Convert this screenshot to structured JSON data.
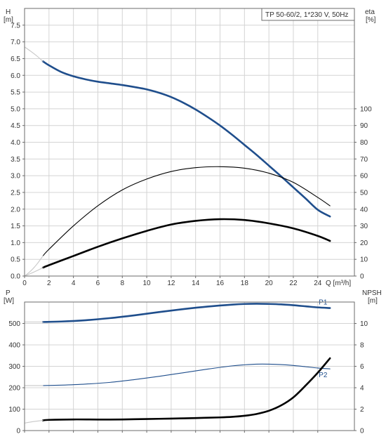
{
  "chart_data": [
    {
      "type": "line",
      "legend_text": "TP 50-60/2, 1*230 V, 50Hz",
      "xlabel": "Q [m³/h]",
      "x_ticks": [
        "0",
        "2",
        "4",
        "6",
        "8",
        "10",
        "12",
        "14",
        "16",
        "18",
        "20",
        "22",
        "24"
      ],
      "xlim": [
        0,
        27
      ],
      "ylabel_left_name": "H",
      "ylabel_left_unit": "[m]",
      "ylim_left": [
        0,
        8.0
      ],
      "y_ticks_left": [
        "0.0",
        "0.5",
        "1.0",
        "1.5",
        "2.0",
        "2.5",
        "3.0",
        "3.5",
        "4.0",
        "4.5",
        "5.0",
        "5.5",
        "6.0",
        "6.5",
        "7.0",
        "7.5"
      ],
      "ylabel_right_name": "eta",
      "ylabel_right_unit": "[%]",
      "ylim_right": [
        0,
        160
      ],
      "y_ticks_right": [
        "0",
        "10",
        "20",
        "30",
        "40",
        "50",
        "60",
        "70",
        "80",
        "90",
        "100"
      ],
      "grid": true,
      "series": [
        {
          "axis": "left",
          "color": "#1f4e8c",
          "style": "thick",
          "x": [
            1.5,
            2,
            3,
            4,
            5,
            6,
            7,
            8,
            9,
            10,
            11,
            12,
            13,
            14,
            15,
            16,
            17,
            18,
            19,
            20,
            21,
            22,
            23,
            24,
            25
          ],
          "y": [
            6.42,
            6.3,
            6.1,
            5.97,
            5.88,
            5.81,
            5.76,
            5.71,
            5.65,
            5.58,
            5.48,
            5.35,
            5.18,
            4.98,
            4.75,
            4.5,
            4.22,
            3.92,
            3.62,
            3.3,
            2.98,
            2.65,
            2.32,
            1.98,
            1.78
          ]
        },
        {
          "axis": "left",
          "color": "#c8c8c8",
          "style": "thin",
          "x": [
            0,
            0.5,
            1.0,
            1.5
          ],
          "y": [
            6.85,
            6.72,
            6.58,
            6.42
          ]
        },
        {
          "axis": "right",
          "color": "#000000",
          "style": "thin",
          "x": [
            1.5,
            2,
            4,
            6,
            8,
            10,
            12,
            14,
            16,
            18,
            20,
            22,
            24,
            25
          ],
          "y": [
            12,
            16,
            30,
            42,
            51.5,
            58,
            62.5,
            64.8,
            65.4,
            64.5,
            61.5,
            56,
            47,
            42
          ]
        },
        {
          "axis": "right",
          "color": "#000000",
          "style": "thick",
          "x": [
            1.5,
            2,
            4,
            6,
            8,
            10,
            12,
            14,
            16,
            18,
            20,
            22,
            24,
            25
          ],
          "y": [
            5,
            6.5,
            12,
            17.5,
            22.5,
            27,
            30.8,
            33,
            34,
            33.5,
            31.5,
            28.5,
            24,
            21
          ]
        },
        {
          "axis": "right",
          "color": "#c8c8c8",
          "style": "thin",
          "x": [
            0,
            0.5,
            1.0,
            1.5
          ],
          "y": [
            0,
            3,
            7,
            12
          ]
        },
        {
          "axis": "right",
          "color": "#c8c8c8",
          "style": "thin",
          "x": [
            0,
            0.5,
            1.0,
            1.5
          ],
          "y": [
            0,
            1.5,
            3.2,
            5
          ]
        }
      ]
    },
    {
      "type": "line",
      "ylabel_left_name": "P",
      "ylabel_left_unit": "[W]",
      "ylim_left": [
        0,
        600
      ],
      "y_ticks_left": [
        "0",
        "100",
        "200",
        "300",
        "400",
        "500"
      ],
      "ylabel_right_name": "NPSH",
      "ylabel_right_unit": "[m]",
      "ylim_right": [
        0,
        12
      ],
      "y_ticks_right": [
        "0",
        "2",
        "4",
        "6",
        "8",
        "10"
      ],
      "xlim": [
        0,
        27
      ],
      "grid": true,
      "series": [
        {
          "name": "P1",
          "axis": "left",
          "color": "#1f4e8c",
          "style": "thick",
          "x": [
            1.5,
            3,
            5,
            7,
            9,
            11,
            13,
            15,
            17,
            18,
            19,
            20,
            21,
            22,
            23,
            24,
            25
          ],
          "y": [
            507,
            509,
            515,
            525,
            538,
            553,
            567,
            579,
            588,
            591,
            592,
            591,
            589,
            585,
            580,
            575,
            572
          ]
        },
        {
          "name": "P2",
          "axis": "left",
          "color": "#1f4e8c",
          "style": "thin",
          "x": [
            1.5,
            3,
            5,
            7,
            9,
            11,
            13,
            15,
            17,
            18,
            19,
            20,
            21,
            22,
            23,
            24,
            25
          ],
          "y": [
            210,
            212,
            217,
            225,
            238,
            253,
            270,
            287,
            302,
            307,
            310,
            310,
            308,
            304,
            298,
            292,
            288
          ]
        },
        {
          "axis": "left",
          "color": "#c8c8c8",
          "style": "thin",
          "x": [
            0,
            0.5,
            1.0,
            1.5
          ],
          "y": [
            507,
            507,
            507,
            507
          ]
        },
        {
          "axis": "left",
          "color": "#c8c8c8",
          "style": "thin",
          "x": [
            0,
            0.5,
            1.0,
            1.5
          ],
          "y": [
            210,
            210,
            210,
            210
          ]
        },
        {
          "axis": "right",
          "color": "#000000",
          "style": "thick",
          "x": [
            1.5,
            2,
            4,
            6,
            8,
            10,
            12,
            14,
            16,
            17,
            18,
            19,
            20,
            21,
            22,
            23,
            24,
            25
          ],
          "y": [
            0.95,
            1.0,
            1.04,
            1.03,
            1.04,
            1.08,
            1.12,
            1.17,
            1.23,
            1.28,
            1.38,
            1.55,
            1.85,
            2.35,
            3.1,
            4.2,
            5.4,
            6.75
          ]
        },
        {
          "axis": "right",
          "color": "#c8c8c8",
          "style": "thin",
          "x": [
            0,
            0.5,
            1.0,
            1.5
          ],
          "y": [
            0.7,
            0.8,
            0.88,
            0.95
          ]
        }
      ]
    }
  ]
}
